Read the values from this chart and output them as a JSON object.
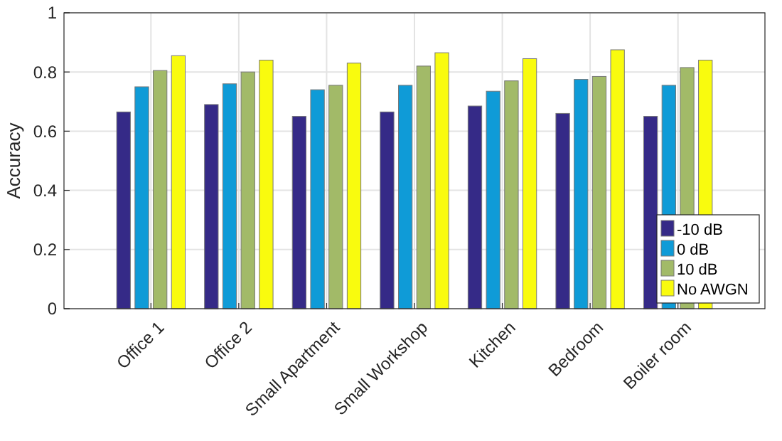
{
  "chart_data": {
    "type": "bar",
    "ylabel": "Accuracy",
    "categories": [
      "Office 1",
      "Office 2",
      "Small Apartment",
      "Small Workshop",
      "Kitchen",
      "Bedroom",
      "Boiler room"
    ],
    "series": [
      {
        "name": "-10 dB",
        "color": "#352a87",
        "values": [
          0.665,
          0.69,
          0.65,
          0.665,
          0.685,
          0.66,
          0.65
        ]
      },
      {
        "name": "0 dB",
        "color": "#0f9bd7",
        "values": [
          0.75,
          0.76,
          0.74,
          0.755,
          0.735,
          0.775,
          0.755
        ]
      },
      {
        "name": "10 dB",
        "color": "#a2ba68",
        "values": [
          0.805,
          0.8,
          0.755,
          0.82,
          0.77,
          0.785,
          0.815
        ]
      },
      {
        "name": "No AWGN",
        "color": "#f9fb0e",
        "values": [
          0.855,
          0.84,
          0.83,
          0.865,
          0.845,
          0.875,
          0.84
        ]
      }
    ],
    "ylim": [
      0,
      1
    ],
    "yticks": [
      0,
      0.2,
      0.4,
      0.6,
      0.8,
      1
    ],
    "grid": true,
    "legend": "bottom right"
  }
}
